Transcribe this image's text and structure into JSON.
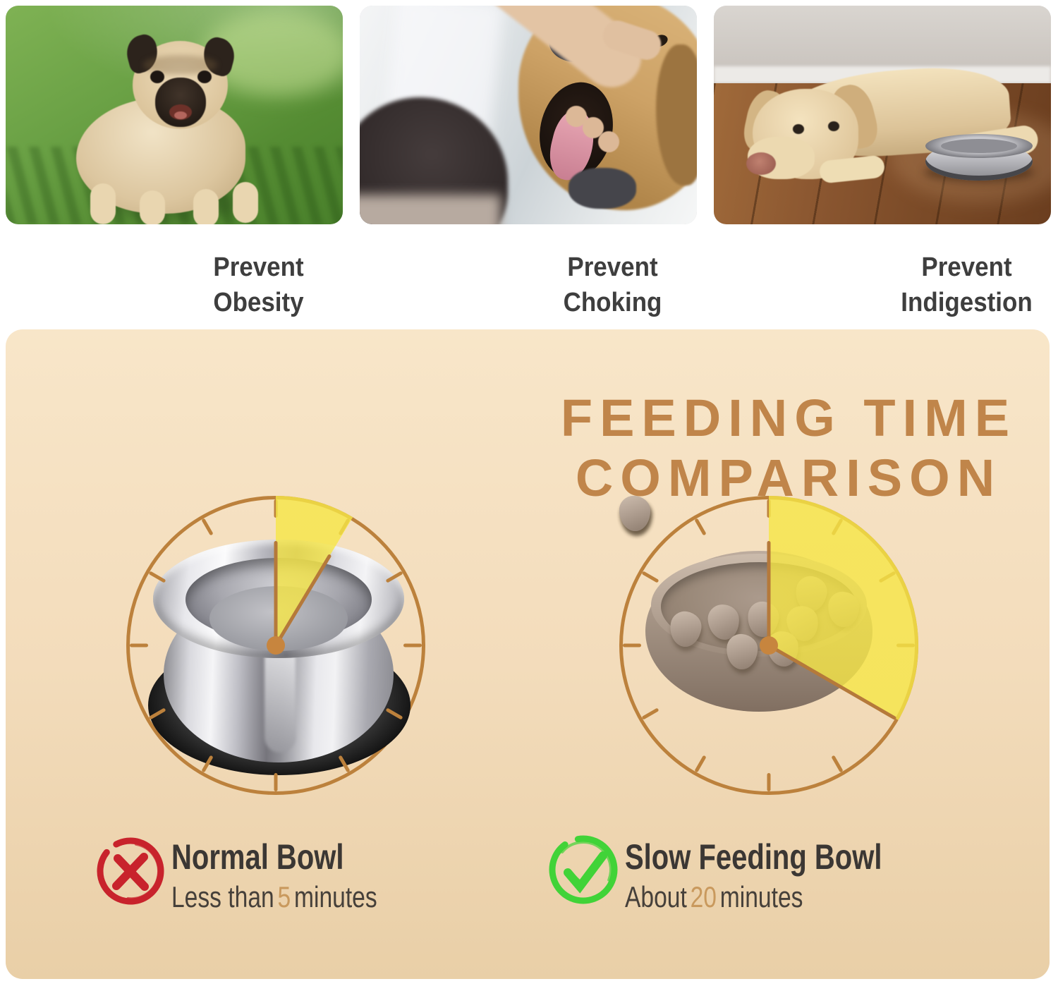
{
  "colors": {
    "page-bg": "#ffffff",
    "panel-top": "#f8e6c9",
    "panel-bottom": "#e9cfa7",
    "title": "#c0854a",
    "clock": "#bc813c",
    "hand": "#b5793a",
    "wedge": "#f6e646",
    "number": "#c9995d",
    "text-dark": "#3b3734",
    "caption": "#3e3e3e",
    "cross": "#c8232c",
    "check": "#41d338"
  },
  "benefits": [
    {
      "label": "Prevent Obesity",
      "scene": "overweight-pug-on-grass"
    },
    {
      "label": "Prevent Choking",
      "scene": "owner-checking-dog-mouth"
    },
    {
      "label": "Prevent Indigestion",
      "scene": "sad-dog-lying-beside-steel-bowl"
    }
  ],
  "comparison": {
    "title": "FEEDING TIME COMPARISON",
    "bowls": [
      {
        "name": "Normal Bowl",
        "verdict": "negative",
        "verdict_icon": "cross-icon",
        "time_prefix": "Less than",
        "time_value": "5",
        "time_unit": "minutes",
        "clock_minutes_shaded": 5,
        "bowl_illustration": "stainless-steel-bowl"
      },
      {
        "name": "Slow Feeding Bowl",
        "verdict": "positive",
        "verdict_icon": "check-icon",
        "time_prefix": "About",
        "time_value": "20",
        "time_unit": "minutes",
        "clock_minutes_shaded": 20,
        "bowl_illustration": "maze-slow-feeder-bowl"
      }
    ]
  }
}
